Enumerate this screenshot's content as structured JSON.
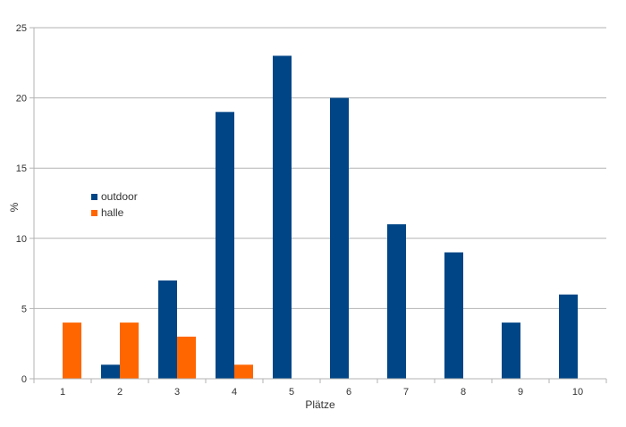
{
  "chart_data": {
    "type": "bar",
    "title": "",
    "xlabel": "Plätze",
    "ylabel": "%",
    "categories": [
      "1",
      "2",
      "3",
      "4",
      "5",
      "6",
      "7",
      "8",
      "9",
      "10"
    ],
    "series": [
      {
        "name": "outdoor",
        "color": "#004586",
        "values": [
          0,
          1,
          7,
          19,
          23,
          20,
          11,
          9,
          4,
          6
        ]
      },
      {
        "name": "halle",
        "color": "#ff6600",
        "values": [
          4,
          4,
          3,
          1,
          0,
          0,
          0,
          0,
          0,
          0
        ]
      }
    ],
    "ylim": [
      0,
      25
    ],
    "yticks": [
      0,
      5,
      10,
      15,
      20,
      25
    ],
    "grid": true,
    "legend_position": "left"
  }
}
